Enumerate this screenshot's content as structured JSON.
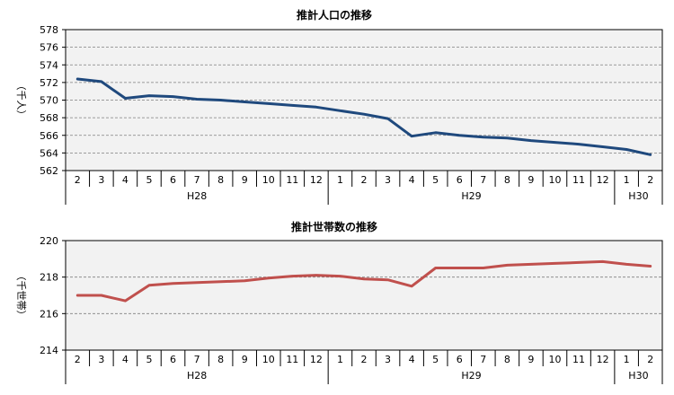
{
  "chart_data": [
    {
      "type": "line",
      "title": "推計人口の推移",
      "ylabel": "（千人）",
      "ylim": [
        562,
        578
      ],
      "yticks": [
        562,
        564,
        566,
        568,
        570,
        572,
        574,
        576,
        578
      ],
      "categories": [
        "2",
        "3",
        "4",
        "5",
        "6",
        "7",
        "8",
        "9",
        "10",
        "11",
        "12",
        "1",
        "2",
        "3",
        "4",
        "5",
        "6",
        "7",
        "8",
        "9",
        "10",
        "11",
        "12",
        "1",
        "2"
      ],
      "groups": [
        {
          "label": "H28",
          "count": 11
        },
        {
          "label": "H29",
          "count": 12
        },
        {
          "label": "H30",
          "count": 2
        }
      ],
      "series": [
        {
          "color": "#1F497D",
          "values": [
            572.4,
            572.1,
            570.2,
            570.5,
            570.4,
            570.1,
            570.0,
            569.8,
            569.6,
            569.4,
            569.2,
            568.8,
            568.4,
            567.9,
            565.9,
            566.3,
            566.0,
            565.8,
            565.7,
            565.4,
            565.2,
            565.0,
            564.7,
            564.4,
            563.8
          ]
        }
      ],
      "grid": true,
      "plot_background": "#F2F2F2"
    },
    {
      "type": "line",
      "title": "推計世帯数の推移",
      "ylabel": "（千世帯）",
      "ylim": [
        214,
        220
      ],
      "yticks": [
        214,
        216,
        218,
        220
      ],
      "categories": [
        "2",
        "3",
        "4",
        "5",
        "6",
        "7",
        "8",
        "9",
        "10",
        "11",
        "12",
        "1",
        "2",
        "3",
        "4",
        "5",
        "6",
        "7",
        "8",
        "9",
        "10",
        "11",
        "12",
        "1",
        "2"
      ],
      "groups": [
        {
          "label": "H28",
          "count": 11
        },
        {
          "label": "H29",
          "count": 12
        },
        {
          "label": "H30",
          "count": 2
        }
      ],
      "series": [
        {
          "color": "#C0504D",
          "values": [
            217.0,
            217.0,
            216.7,
            217.55,
            217.65,
            217.7,
            217.75,
            217.8,
            217.95,
            218.05,
            218.1,
            218.05,
            217.9,
            217.85,
            217.5,
            218.5,
            218.5,
            218.5,
            218.65,
            218.7,
            218.75,
            218.8,
            218.85,
            218.7,
            218.6
          ]
        }
      ],
      "grid": true,
      "plot_background": "#F2F2F2"
    }
  ]
}
